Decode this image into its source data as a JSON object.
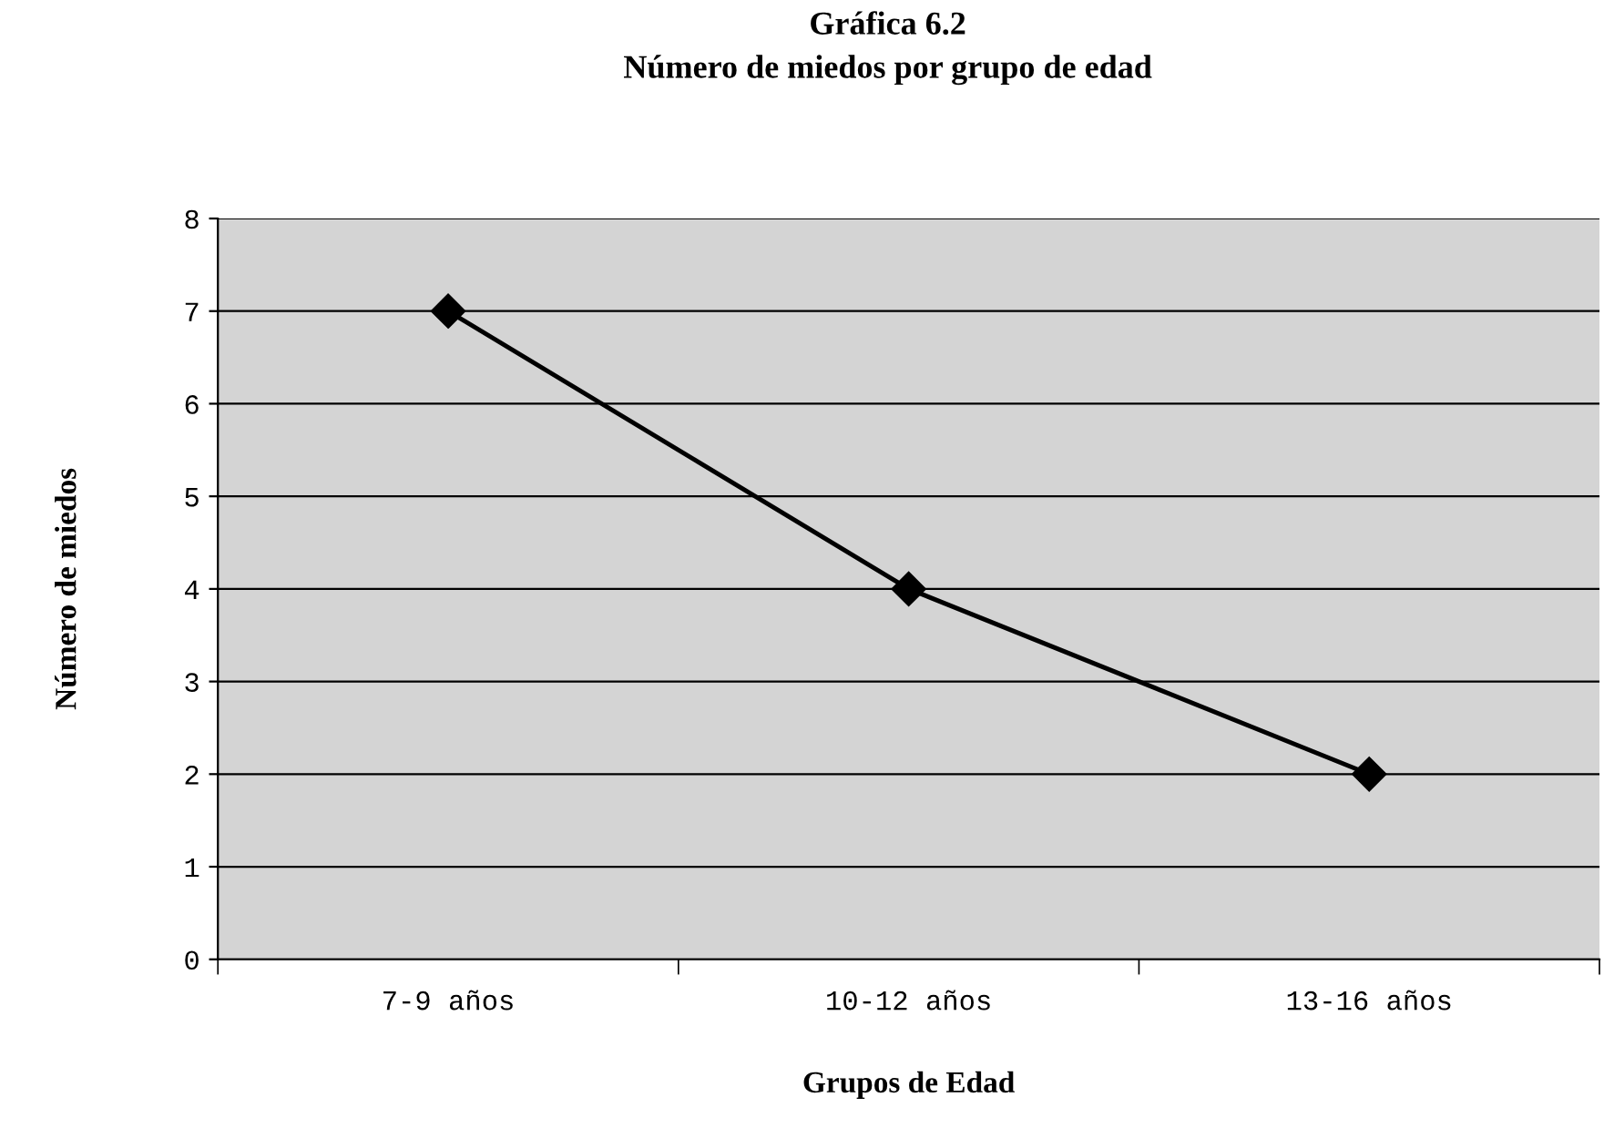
{
  "chart_data": {
    "type": "line",
    "title": "Gráfica 6.2\nNúmero de miedos por grupo de edad",
    "xlabel": "Grupos de Edad",
    "ylabel": "Número de miedos",
    "categories": [
      "7-9 años",
      "10-12 años",
      "13-16 años"
    ],
    "series": [
      {
        "color": "#000000",
        "values": [
          7,
          4,
          2
        ]
      }
    ],
    "ylim": [
      0,
      8
    ],
    "yticks": [
      0,
      1,
      2,
      3,
      4,
      5,
      6,
      7,
      8
    ],
    "grid": "y",
    "legend": false,
    "marker": "diamond",
    "line_style": "solid"
  }
}
